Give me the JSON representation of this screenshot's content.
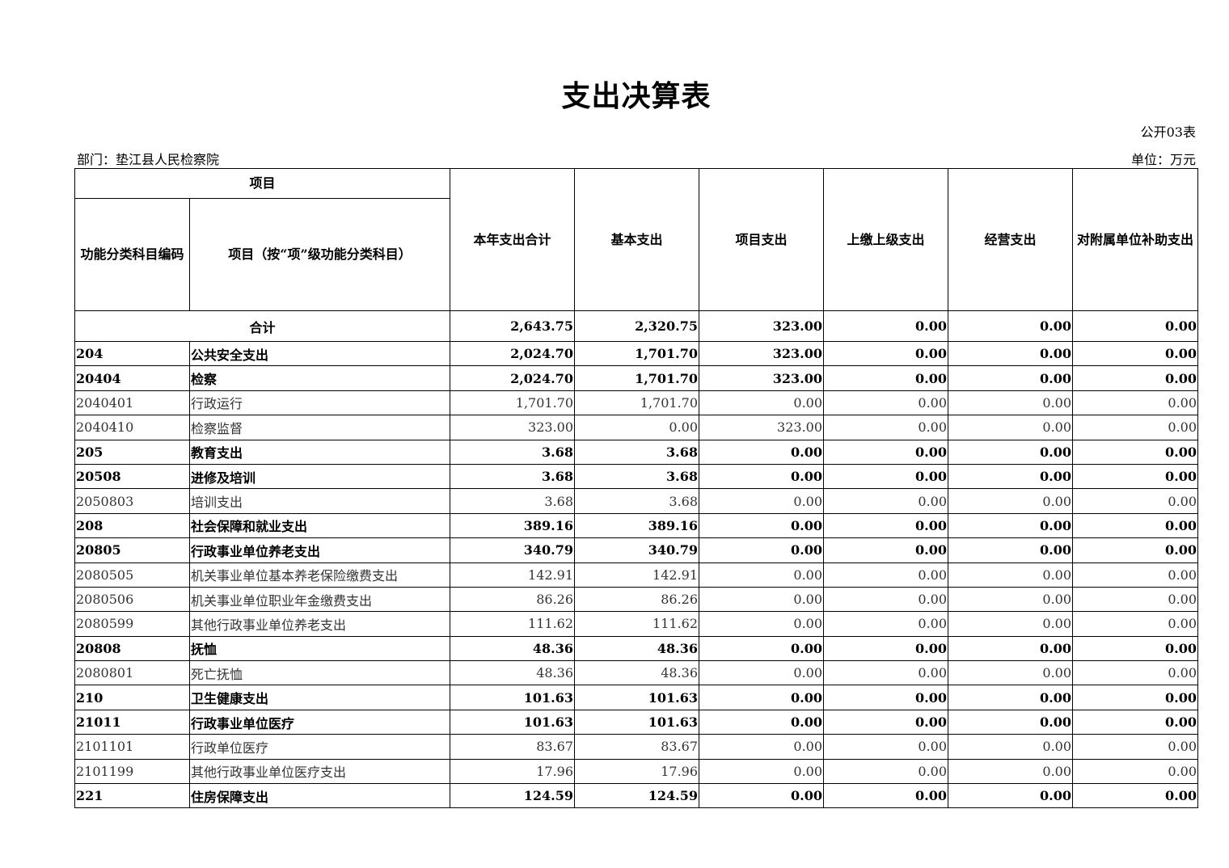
{
  "title": "支出决算表",
  "form_no": "公开03表",
  "department": "部门：垫江县人民检察院",
  "unit": "单位：万元",
  "headers": {
    "item_group": "项目",
    "code": "功能分类科目编码",
    "name": "项目（按“项”级功能分类科目）",
    "total": "本年支出合计",
    "basic": "基本支出",
    "project": "项目支出",
    "upper": "上缴上级支出",
    "business": "经营支出",
    "subsidy": "对附属单位补助支出"
  },
  "total_row": {
    "label": "合计",
    "values": [
      "2,643.75",
      "2,320.75",
      "323.00",
      "0.00",
      "0.00",
      "0.00"
    ]
  },
  "rows": [
    {
      "code": "204",
      "name": "公共安全支出",
      "bold": true,
      "values": [
        "2,024.70",
        "1,701.70",
        "323.00",
        "0.00",
        "0.00",
        "0.00"
      ]
    },
    {
      "code": "20404",
      "name": "检察",
      "bold": true,
      "values": [
        "2,024.70",
        "1,701.70",
        "323.00",
        "0.00",
        "0.00",
        "0.00"
      ]
    },
    {
      "code": "2040401",
      "name": "行政运行",
      "bold": false,
      "values": [
        "1,701.70",
        "1,701.70",
        "0.00",
        "0.00",
        "0.00",
        "0.00"
      ]
    },
    {
      "code": "2040410",
      "name": "检察监督",
      "bold": false,
      "values": [
        "323.00",
        "0.00",
        "323.00",
        "0.00",
        "0.00",
        "0.00"
      ]
    },
    {
      "code": "205",
      "name": "教育支出",
      "bold": true,
      "values": [
        "3.68",
        "3.68",
        "0.00",
        "0.00",
        "0.00",
        "0.00"
      ]
    },
    {
      "code": "20508",
      "name": "进修及培训",
      "bold": true,
      "values": [
        "3.68",
        "3.68",
        "0.00",
        "0.00",
        "0.00",
        "0.00"
      ]
    },
    {
      "code": "2050803",
      "name": "培训支出",
      "bold": false,
      "values": [
        "3.68",
        "3.68",
        "0.00",
        "0.00",
        "0.00",
        "0.00"
      ]
    },
    {
      "code": "208",
      "name": "社会保障和就业支出",
      "bold": true,
      "values": [
        "389.16",
        "389.16",
        "0.00",
        "0.00",
        "0.00",
        "0.00"
      ]
    },
    {
      "code": "20805",
      "name": "行政事业单位养老支出",
      "bold": true,
      "values": [
        "340.79",
        "340.79",
        "0.00",
        "0.00",
        "0.00",
        "0.00"
      ]
    },
    {
      "code": "2080505",
      "name": "机关事业单位基本养老保险缴费支出",
      "bold": false,
      "values": [
        "142.91",
        "142.91",
        "0.00",
        "0.00",
        "0.00",
        "0.00"
      ]
    },
    {
      "code": "2080506",
      "name": "机关事业单位职业年金缴费支出",
      "bold": false,
      "values": [
        "86.26",
        "86.26",
        "0.00",
        "0.00",
        "0.00",
        "0.00"
      ]
    },
    {
      "code": "2080599",
      "name": "其他行政事业单位养老支出",
      "bold": false,
      "values": [
        "111.62",
        "111.62",
        "0.00",
        "0.00",
        "0.00",
        "0.00"
      ]
    },
    {
      "code": "20808",
      "name": "抚恤",
      "bold": true,
      "values": [
        "48.36",
        "48.36",
        "0.00",
        "0.00",
        "0.00",
        "0.00"
      ]
    },
    {
      "code": "2080801",
      "name": "死亡抚恤",
      "bold": false,
      "values": [
        "48.36",
        "48.36",
        "0.00",
        "0.00",
        "0.00",
        "0.00"
      ]
    },
    {
      "code": "210",
      "name": "卫生健康支出",
      "bold": true,
      "values": [
        "101.63",
        "101.63",
        "0.00",
        "0.00",
        "0.00",
        "0.00"
      ]
    },
    {
      "code": "21011",
      "name": "行政事业单位医疗",
      "bold": true,
      "values": [
        "101.63",
        "101.63",
        "0.00",
        "0.00",
        "0.00",
        "0.00"
      ]
    },
    {
      "code": "2101101",
      "name": "行政单位医疗",
      "bold": false,
      "values": [
        "83.67",
        "83.67",
        "0.00",
        "0.00",
        "0.00",
        "0.00"
      ]
    },
    {
      "code": "2101199",
      "name": "其他行政事业单位医疗支出",
      "bold": false,
      "values": [
        "17.96",
        "17.96",
        "0.00",
        "0.00",
        "0.00",
        "0.00"
      ]
    },
    {
      "code": "221",
      "name": "住房保障支出",
      "bold": true,
      "values": [
        "124.59",
        "124.59",
        "0.00",
        "0.00",
        "0.00",
        "0.00"
      ]
    }
  ]
}
